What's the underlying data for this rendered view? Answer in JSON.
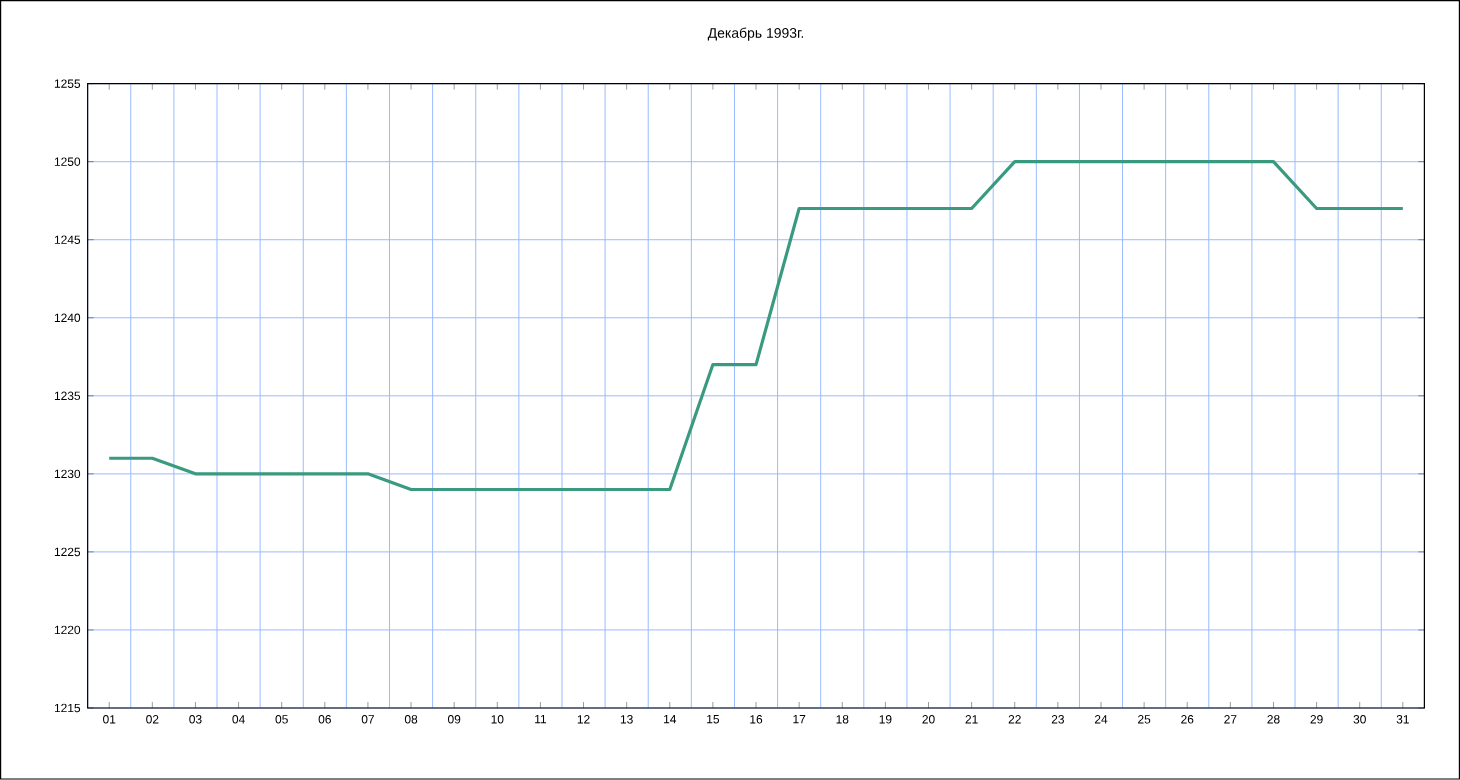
{
  "chart_data": {
    "type": "line",
    "title": "Декабрь 1993г.",
    "categories": [
      "01",
      "02",
      "03",
      "04",
      "05",
      "06",
      "07",
      "08",
      "09",
      "10",
      "11",
      "12",
      "13",
      "14",
      "15",
      "16",
      "17",
      "18",
      "19",
      "20",
      "21",
      "22",
      "23",
      "24",
      "25",
      "26",
      "27",
      "28",
      "29",
      "30",
      "31"
    ],
    "series": [
      {
        "color": "#3a9a80",
        "values": [
          1231,
          1231,
          1230,
          1230,
          1230,
          1230,
          1230,
          1229,
          1229,
          1229,
          1229,
          1229,
          1229,
          1229,
          1237,
          1237,
          1247,
          1247,
          1247,
          1247,
          1247,
          1250,
          1250,
          1250,
          1250,
          1250,
          1250,
          1250,
          1247,
          1247,
          1247
        ]
      }
    ],
    "ylim": [
      1215,
      1255
    ],
    "yticks": [
      1215,
      1220,
      1225,
      1230,
      1235,
      1240,
      1245,
      1250,
      1255
    ],
    "grid": true,
    "marker": "none",
    "line_style": "solid"
  }
}
